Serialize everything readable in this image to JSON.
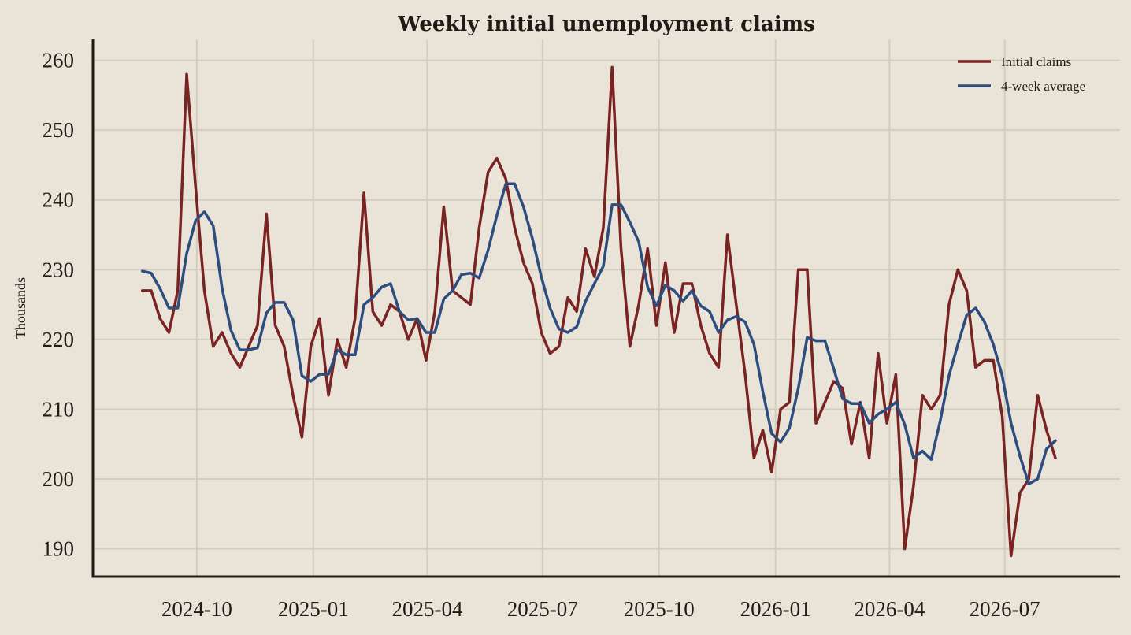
{
  "chart_data": {
    "type": "line",
    "title": "Weekly initial unemployment claims",
    "xlabel": "",
    "ylabel": "Thousands",
    "x_start_date": "2024-08-19",
    "x_step": "week",
    "xlim": [
      "2024-07-11",
      "2026-09-30"
    ],
    "ylim": [
      186,
      263
    ],
    "yticks": [
      190,
      200,
      210,
      220,
      230,
      240,
      250,
      260
    ],
    "xticks": [
      "2024-10",
      "2025-01",
      "2025-04",
      "2025-07",
      "2025-10",
      "2026-01",
      "2026-04",
      "2026-07"
    ],
    "grid": true,
    "legend_position": "top-right",
    "colors": {
      "Initial claims": "#7a2323",
      "4-week average": "#2d4d7e"
    },
    "series": [
      {
        "name": "Initial claims",
        "values": [
          227,
          227,
          223,
          221,
          227,
          258,
          242,
          227,
          219,
          221,
          218,
          216,
          219,
          222,
          238,
          222,
          219,
          212,
          206,
          219,
          223,
          212,
          220,
          216,
          223,
          241,
          224,
          222,
          225,
          224,
          220,
          223,
          217,
          224,
          239,
          227,
          226,
          225,
          236,
          244,
          246,
          243,
          236,
          231,
          228,
          221,
          218,
          219,
          226,
          224,
          233,
          229,
          236,
          259,
          233,
          219,
          225,
          233,
          222,
          231,
          221,
          228,
          228,
          222,
          218,
          216,
          235,
          225,
          215,
          203,
          207,
          201,
          210,
          211,
          230,
          230,
          208,
          211,
          214,
          213,
          205,
          211,
          203,
          218,
          208,
          215,
          190,
          199,
          212,
          210,
          212,
          225,
          230,
          227,
          216,
          217,
          217,
          209,
          189,
          198,
          200,
          212,
          207,
          203
        ]
      },
      {
        "name": "4-week average",
        "values": [
          229.8,
          229.5,
          227.3,
          224.5,
          224.5,
          232.3,
          237.0,
          238.3,
          236.3,
          227.3,
          221.3,
          218.5,
          218.5,
          218.8,
          223.8,
          225.3,
          225.3,
          222.8,
          214.8,
          214.0,
          215.0,
          215.0,
          218.5,
          217.8,
          217.8,
          225.0,
          226.0,
          227.5,
          228.0,
          224.0,
          222.8,
          223.0,
          221.0,
          221.0,
          225.8,
          227.0,
          229.3,
          229.5,
          228.8,
          232.8,
          237.8,
          242.3,
          242.3,
          239.0,
          234.5,
          229.0,
          224.5,
          221.5,
          221.0,
          221.8,
          225.5,
          228.0,
          230.5,
          239.3,
          239.3,
          236.8,
          234.0,
          227.5,
          224.8,
          227.8,
          227.0,
          225.5,
          227.0,
          224.8,
          224.0,
          221.0,
          222.8,
          223.3,
          222.5,
          219.3,
          212.5,
          206.5,
          205.3,
          207.3,
          213.0,
          220.3,
          219.8,
          219.8,
          215.8,
          211.5,
          210.8,
          210.8,
          208.0,
          209.3,
          210.0,
          211.0,
          207.8,
          203.0,
          204.0,
          202.8,
          208.3,
          214.8,
          219.3,
          223.5,
          224.5,
          222.5,
          219.3,
          214.8,
          208.0,
          203.3,
          199.3,
          200.0,
          204.3,
          205.5
        ]
      }
    ]
  }
}
